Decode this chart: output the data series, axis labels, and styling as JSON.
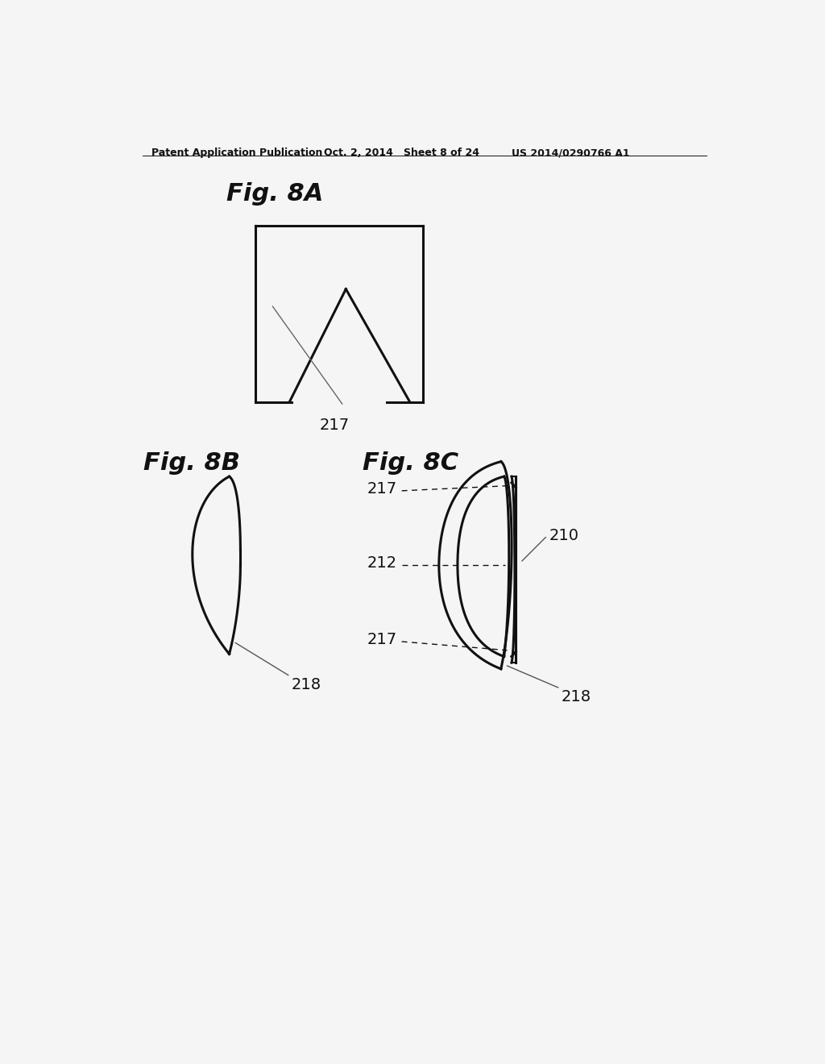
{
  "header_left": "Patent Application Publication",
  "header_mid": "Oct. 2, 2014   Sheet 8 of 24",
  "header_right": "US 2014/0290766 A1",
  "fig8a_label": "Fig. 8A",
  "fig8b_label": "Fig. 8B",
  "fig8c_label": "Fig. 8C",
  "lbl_217": "217",
  "lbl_218": "218",
  "lbl_212": "212",
  "lbl_210": "210",
  "bg_color": "#f5f5f5",
  "line_color": "#111111",
  "line_width": 2.0
}
